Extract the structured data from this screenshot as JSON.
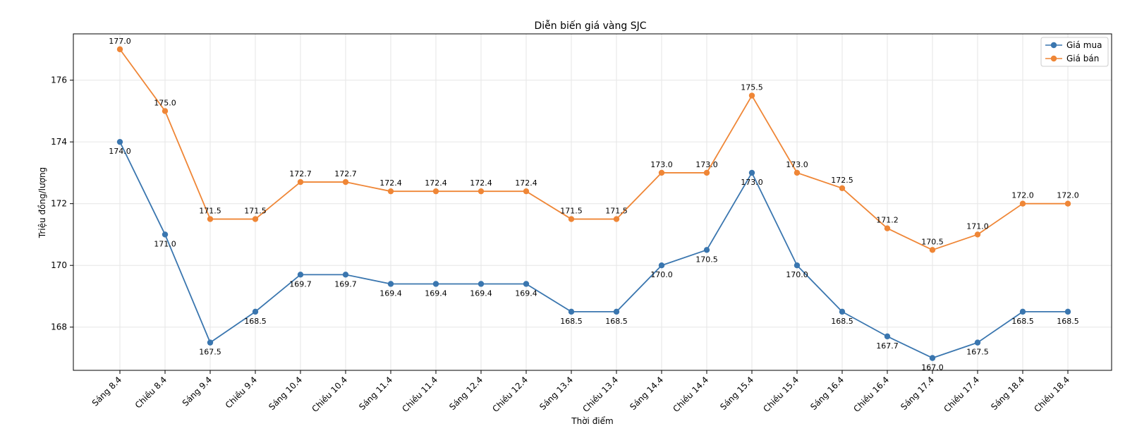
{
  "chart_data": {
    "type": "line",
    "title": "Diễn biến giá vàng SJC",
    "xlabel": "Thời điểm",
    "ylabel": "Triệu đồng/lượng",
    "ylim": [
      166.6,
      177.5
    ],
    "yticks": [
      168,
      170,
      172,
      174,
      176
    ],
    "grid": true,
    "legend_position": "top-right",
    "categories": [
      "Sáng 8.4",
      "Chiều 8.4",
      "Sáng 9.4",
      "Chiều 9.4",
      "Sáng 10.4",
      "Chiều 10.4",
      "Sáng 11.4",
      "Chiều 11.4",
      "Sáng 12.4",
      "Chiều 12.4",
      "Sáng 13.4",
      "Chiều 13.4",
      "Sáng 14.4",
      "Chiều 14.4",
      "Sáng 15.4",
      "Chiều 15.4",
      "Sáng 16.4",
      "Chiều 16.4",
      "Sáng 17.4",
      "Chiều 17.4",
      "Sáng 18.4",
      "Chiều 18.4"
    ],
    "series": [
      {
        "name": "Giá mua",
        "color": "#3a76af",
        "label_position": "below",
        "values": [
          174.0,
          171.0,
          167.5,
          168.5,
          169.7,
          169.7,
          169.4,
          169.4,
          169.4,
          169.4,
          168.5,
          168.5,
          170.0,
          170.5,
          173.0,
          170.0,
          168.5,
          167.7,
          167.0,
          167.5,
          168.5,
          168.5
        ],
        "labels": [
          "174.0",
          "171.0",
          "167.5",
          "168.5",
          "169.7",
          "169.7",
          "169.4",
          "169.4",
          "169.4",
          "169.4",
          "168.5",
          "168.5",
          "170.0",
          "170.5",
          "173.0",
          "170.0",
          "168.5",
          "167.7",
          "167.0",
          "167.5",
          "168.5",
          "168.5"
        ]
      },
      {
        "name": "Giá bán",
        "color": "#ef8636",
        "label_position": "above",
        "values": [
          177.0,
          175.0,
          171.5,
          171.5,
          172.7,
          172.7,
          172.4,
          172.4,
          172.4,
          172.4,
          171.5,
          171.5,
          173.0,
          173.0,
          175.5,
          173.0,
          172.5,
          171.2,
          170.5,
          171.0,
          172.0,
          172.0
        ],
        "labels": [
          "177.0",
          "175.0",
          "171.5",
          "171.5",
          "172.7",
          "172.7",
          "172.4",
          "172.4",
          "172.4",
          "172.4",
          "171.5",
          "171.5",
          "173.0",
          "173.0",
          "175.5",
          "173.0",
          "172.5",
          "171.2",
          "170.5",
          "171.0",
          "172.0",
          "172.0"
        ]
      }
    ]
  }
}
